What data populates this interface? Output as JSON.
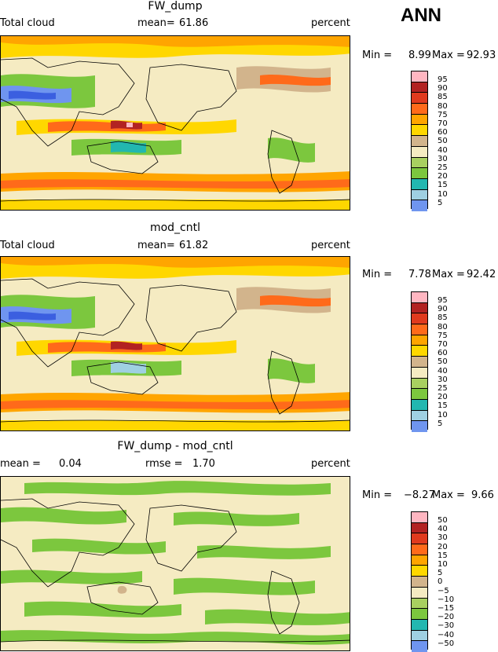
{
  "season": "ANN",
  "units": "percent",
  "colors": {
    "abs": [
      "#7a6ad8",
      "#0000c8",
      "#3b5fe0",
      "#6f95ef",
      "#9fd0e2",
      "#22b7b0",
      "#7cc73e",
      "#a8d060",
      "#f5ebc2",
      "#d2b48c",
      "#ffd700",
      "#ffa500",
      "#ff6a1a",
      "#e03a1e",
      "#b22222",
      "#ffb6c1",
      "#ff1493"
    ],
    "diff": [
      "#7a6ad8",
      "#0000c8",
      "#3b5fe0",
      "#6f95ef",
      "#9fd0e2",
      "#22b7b0",
      "#7cc73e",
      "#a8d060",
      "#f5ebc2",
      "#d2b48c",
      "#ffd700",
      "#ffa500",
      "#ff6a1a",
      "#e03a1e",
      "#b22222",
      "#ffb6c1",
      "#ff1493"
    ]
  },
  "panels": [
    {
      "title": "FW_dump",
      "variable": "Total cloud",
      "stat_label": "mean=",
      "stat_value": "61.86",
      "units": "percent",
      "min_label": "Min =",
      "min_value": "8.99",
      "max_label": "Max =",
      "max_value": "92.93",
      "levels": [
        "95",
        "90",
        "85",
        "80",
        "75",
        "70",
        "60",
        "50",
        "40",
        "30",
        "25",
        "20",
        "15",
        "10",
        "5"
      ]
    },
    {
      "title": "mod_cntl",
      "variable": "Total cloud",
      "stat_label": "mean=",
      "stat_value": "61.82",
      "units": "percent",
      "min_label": "Min =",
      "min_value": "7.78",
      "max_label": "Max =",
      "max_value": "92.42",
      "levels": [
        "95",
        "90",
        "85",
        "80",
        "75",
        "70",
        "60",
        "50",
        "40",
        "30",
        "25",
        "20",
        "15",
        "10",
        "5"
      ]
    },
    {
      "title": "FW_dump - mod_cntl",
      "mean_label": "mean =",
      "mean_value": "0.04",
      "rmse_label": "rmse =",
      "rmse_value": "1.70",
      "units": "percent",
      "min_label": "Min =",
      "min_value": "−8.27",
      "max_label": "Max =",
      "max_value": "9.66",
      "levels": [
        "50",
        "40",
        "30",
        "20",
        "15",
        "10",
        "5",
        "0",
        "−5",
        "−10",
        "−15",
        "−20",
        "−30",
        "−40",
        "−50"
      ]
    }
  ]
}
